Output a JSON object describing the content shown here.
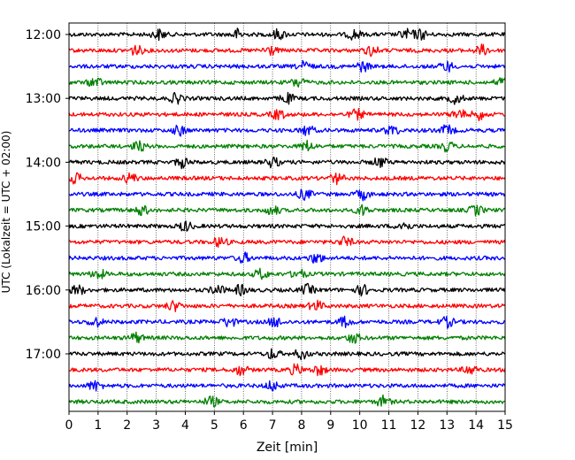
{
  "chart_data": {
    "type": "line",
    "title": "",
    "xlabel": "Zeit  [min]",
    "ylabel": "UTC (Lokalzeit = UTC + 02:00)",
    "xlim": [
      0,
      15
    ],
    "xticks": [
      "0",
      "1",
      "2",
      "3",
      "4",
      "5",
      "6",
      "7",
      "8",
      "9",
      "10",
      "11",
      "12",
      "13",
      "14",
      "15"
    ],
    "yticks": [
      "12:00",
      "13:00",
      "14:00",
      "15:00",
      "16:00",
      "17:00"
    ],
    "grid_x": true,
    "row_minutes": 15,
    "color_cycle": [
      "#000000",
      "#ff0000",
      "#0000ff",
      "#008000"
    ],
    "traces": [
      {
        "start": "12:00",
        "color": "#000000",
        "events": [
          3.1,
          5.8,
          7.2,
          9.8,
          11.6,
          12.1
        ]
      },
      {
        "start": "12:15",
        "color": "#ff0000",
        "events": [
          2.3,
          6.9,
          10.4,
          14.2
        ]
      },
      {
        "start": "12:30",
        "color": "#0000ff",
        "events": [
          8.1,
          10.1,
          13.0
        ]
      },
      {
        "start": "12:45",
        "color": "#008000",
        "events": [
          0.9,
          7.9,
          14.9
        ]
      },
      {
        "start": "13:00",
        "color": "#000000",
        "events": [
          3.7,
          7.5,
          13.3
        ]
      },
      {
        "start": "13:15",
        "color": "#ff0000",
        "events": [
          7.2,
          9.9,
          13.4,
          14.1
        ]
      },
      {
        "start": "13:30",
        "color": "#0000ff",
        "events": [
          3.8,
          8.2,
          11.1,
          13.0
        ]
      },
      {
        "start": "13:45",
        "color": "#008000",
        "events": [
          2.4,
          8.2,
          13.0
        ]
      },
      {
        "start": "14:00",
        "color": "#000000",
        "events": [
          3.9,
          7.0,
          10.7
        ]
      },
      {
        "start": "14:15",
        "color": "#ff0000",
        "events": [
          0.2,
          2.1,
          9.2
        ]
      },
      {
        "start": "14:30",
        "color": "#0000ff",
        "events": [
          8.1,
          10.1
        ]
      },
      {
        "start": "14:45",
        "color": "#008000",
        "events": [
          2.5,
          7.0,
          10.1,
          14.0
        ]
      },
      {
        "start": "15:00",
        "color": "#000000",
        "events": [
          4.0,
          11.5
        ]
      },
      {
        "start": "15:15",
        "color": "#ff0000",
        "events": [
          5.2,
          9.5
        ]
      },
      {
        "start": "15:30",
        "color": "#0000ff",
        "events": [
          6.0,
          8.5
        ]
      },
      {
        "start": "15:45",
        "color": "#008000",
        "events": [
          1.0,
          6.6,
          7.9
        ]
      },
      {
        "start": "16:00",
        "color": "#000000",
        "events": [
          0.3,
          5.1,
          5.9,
          8.2,
          10.1
        ]
      },
      {
        "start": "16:15",
        "color": "#ff0000",
        "events": [
          3.6,
          8.5
        ]
      },
      {
        "start": "16:30",
        "color": "#0000ff",
        "events": [
          0.9,
          5.5,
          7.1,
          9.5,
          13.0
        ]
      },
      {
        "start": "16:45",
        "color": "#008000",
        "events": [
          2.3,
          9.8
        ]
      },
      {
        "start": "17:00",
        "color": "#000000",
        "events": [
          7.0,
          8.0
        ]
      },
      {
        "start": "17:15",
        "color": "#ff0000",
        "events": [
          5.9,
          7.8,
          8.6,
          13.8
        ]
      },
      {
        "start": "17:30",
        "color": "#0000ff",
        "events": [
          0.9,
          7.0
        ]
      },
      {
        "start": "17:45",
        "color": "#008000",
        "events": [
          4.9,
          10.8
        ]
      }
    ]
  }
}
